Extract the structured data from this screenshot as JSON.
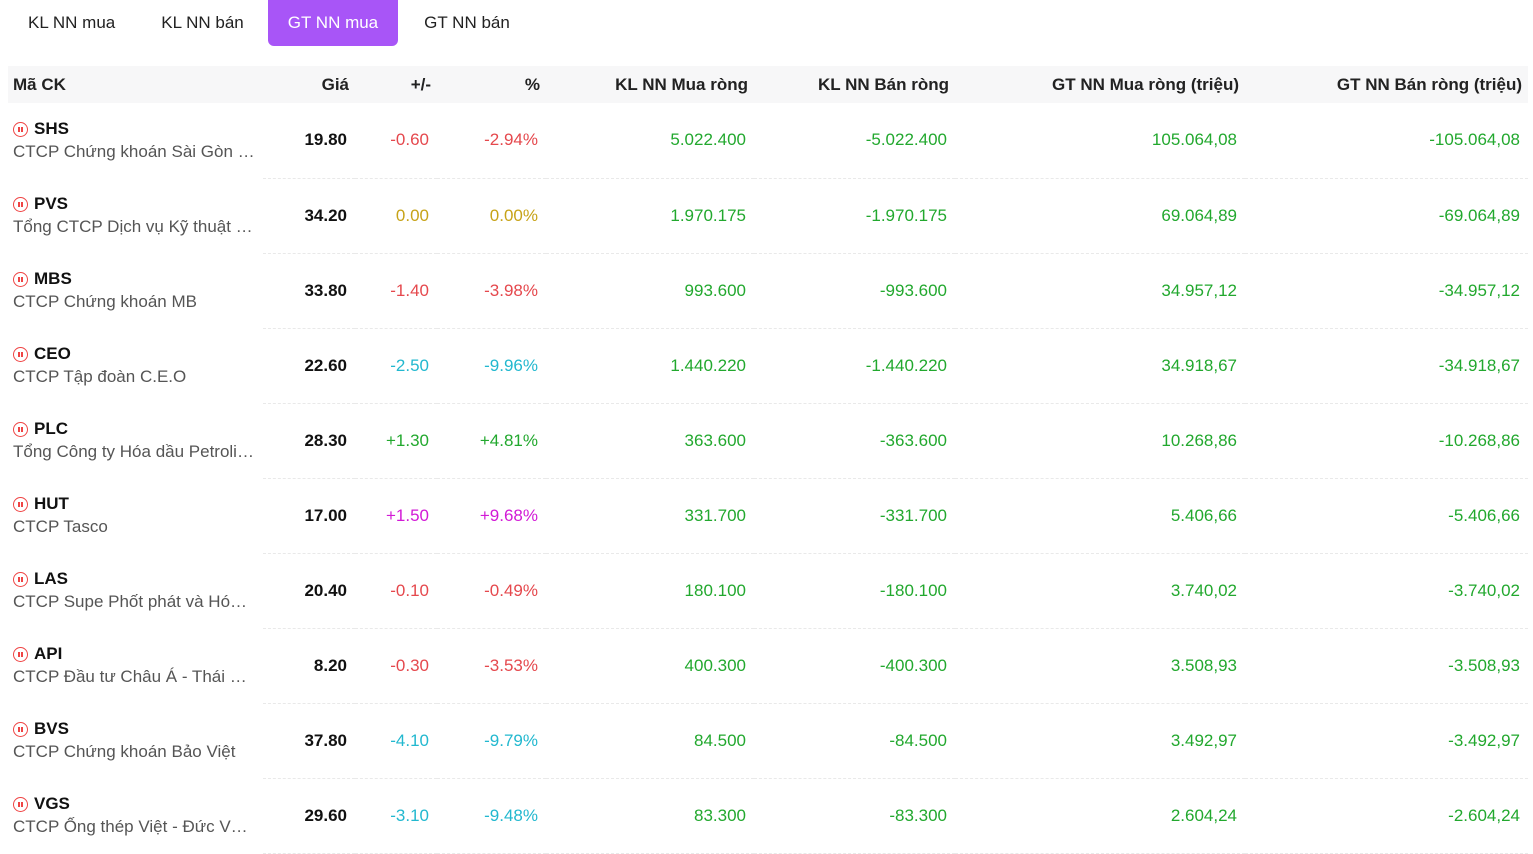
{
  "tabs": [
    {
      "label": "KL NN mua",
      "active": false
    },
    {
      "label": "KL NN bán",
      "active": false
    },
    {
      "label": "GT NN mua",
      "active": true
    },
    {
      "label": "GT NN bán",
      "active": false
    }
  ],
  "colors": {
    "accent": "#a855f7",
    "down": "#e5484d",
    "reference": "#c7a318",
    "floor": "#22b8cf",
    "up": "#22a82e",
    "ceiling": "#d21ad6"
  },
  "table": {
    "headers": [
      "Mã CK",
      "Giá",
      "+/-",
      "%",
      "KL NN Mua ròng",
      "KL NN Bán ròng",
      "GT NN Mua ròng (triệu)",
      "GT NN Bán ròng (triệu)"
    ],
    "rows": [
      {
        "symbol": "SHS",
        "company": "CTCP Chứng khoán Sài Gòn - Hà Nội",
        "price": "19.80",
        "change": "-0.60",
        "pct": "-2.94%",
        "trend": "neg",
        "kl_mua": "5.022.400",
        "kl_ban": "-5.022.400",
        "gt_mua": "105.064,08",
        "gt_ban": "-105.064,08"
      },
      {
        "symbol": "PVS",
        "company": "Tổng CTCP Dịch vụ Kỹ thuật Dầu khí Việt Nam",
        "price": "34.20",
        "change": "0.00",
        "pct": "0.00%",
        "trend": "ref",
        "kl_mua": "1.970.175",
        "kl_ban": "-1.970.175",
        "gt_mua": "69.064,89",
        "gt_ban": "-69.064,89"
      },
      {
        "symbol": "MBS",
        "company": "CTCP Chứng khoán MB",
        "price": "33.80",
        "change": "-1.40",
        "pct": "-3.98%",
        "trend": "neg",
        "kl_mua": "993.600",
        "kl_ban": "-993.600",
        "gt_mua": "34.957,12",
        "gt_ban": "-34.957,12"
      },
      {
        "symbol": "CEO",
        "company": "CTCP Tập đoàn C.E.O",
        "price": "22.60",
        "change": "-2.50",
        "pct": "-9.96%",
        "trend": "floor",
        "kl_mua": "1.440.220",
        "kl_ban": "-1.440.220",
        "gt_mua": "34.918,67",
        "gt_ban": "-34.918,67"
      },
      {
        "symbol": "PLC",
        "company": "Tổng Công ty Hóa dầu Petrolimex - CTCP",
        "price": "28.30",
        "change": "+1.30",
        "pct": "+4.81%",
        "trend": "up",
        "kl_mua": "363.600",
        "kl_ban": "-363.600",
        "gt_mua": "10.268,86",
        "gt_ban": "-10.268,86"
      },
      {
        "symbol": "HUT",
        "company": "CTCP Tasco",
        "price": "17.00",
        "change": "+1.50",
        "pct": "+9.68%",
        "trend": "ceil",
        "kl_mua": "331.700",
        "kl_ban": "-331.700",
        "gt_mua": "5.406,66",
        "gt_ban": "-5.406,66"
      },
      {
        "symbol": "LAS",
        "company": "CTCP Supe Phốt phát và Hóa chất Lâm Thao",
        "price": "20.40",
        "change": "-0.10",
        "pct": "-0.49%",
        "trend": "neg",
        "kl_mua": "180.100",
        "kl_ban": "-180.100",
        "gt_mua": "3.740,02",
        "gt_ban": "-3.740,02"
      },
      {
        "symbol": "API",
        "company": "CTCP Đầu tư Châu Á - Thái Bình Dương",
        "price": "8.20",
        "change": "-0.30",
        "pct": "-3.53%",
        "trend": "neg",
        "kl_mua": "400.300",
        "kl_ban": "-400.300",
        "gt_mua": "3.508,93",
        "gt_ban": "-3.508,93"
      },
      {
        "symbol": "BVS",
        "company": "CTCP Chứng khoán Bảo Việt",
        "price": "37.80",
        "change": "-4.10",
        "pct": "-9.79%",
        "trend": "floor",
        "kl_mua": "84.500",
        "kl_ban": "-84.500",
        "gt_mua": "3.492,97",
        "gt_ban": "-3.492,97"
      },
      {
        "symbol": "VGS",
        "company": "CTCP Ống thép Việt - Đức VG PIPE",
        "price": "29.60",
        "change": "-3.10",
        "pct": "-9.48%",
        "trend": "floor",
        "kl_mua": "83.300",
        "kl_ban": "-83.300",
        "gt_mua": "2.604,24",
        "gt_ban": "-2.604,24"
      }
    ]
  }
}
